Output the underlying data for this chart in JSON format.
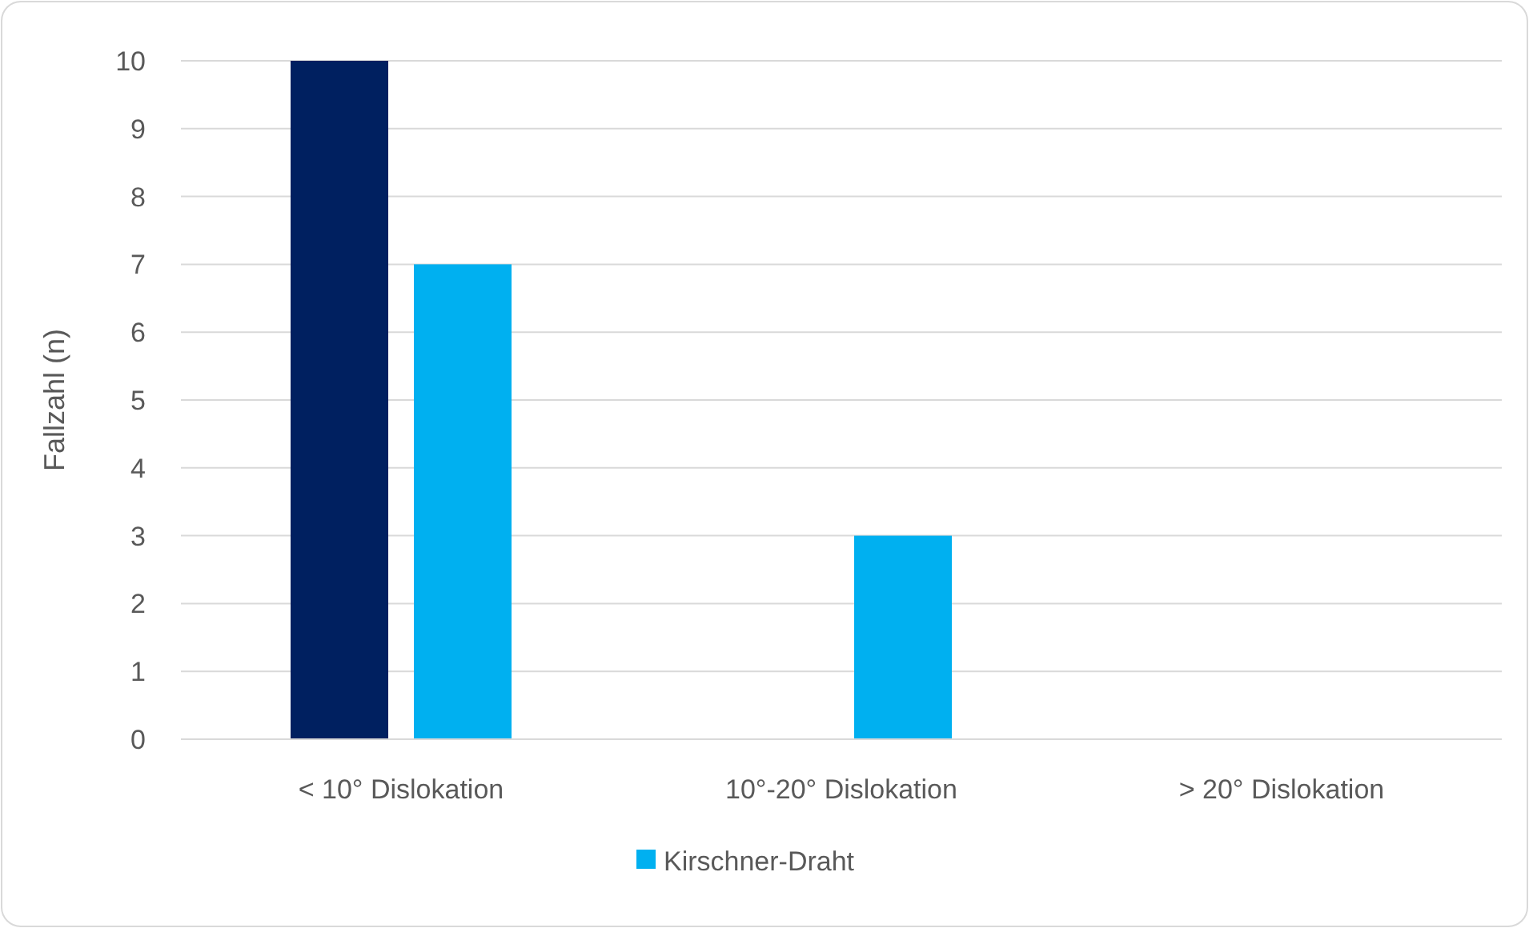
{
  "chart_data": {
    "type": "bar",
    "ylabel": "Fallzahl (n)",
    "categories": [
      "< 10° Dislokation",
      "10°-20° Dislokation",
      "> 20° Dislokation"
    ],
    "series": [
      {
        "color": "#002060",
        "values": [
          10,
          0,
          0
        ]
      },
      {
        "name": "Kirschner-Draht",
        "color": "#00b0f0",
        "values": [
          7,
          3,
          0
        ]
      }
    ],
    "ylim": [
      0,
      10
    ],
    "yticks": [
      0,
      1,
      2,
      3,
      4,
      5,
      6,
      7,
      8,
      9,
      10
    ],
    "grid": "y",
    "legend": "bottom"
  }
}
